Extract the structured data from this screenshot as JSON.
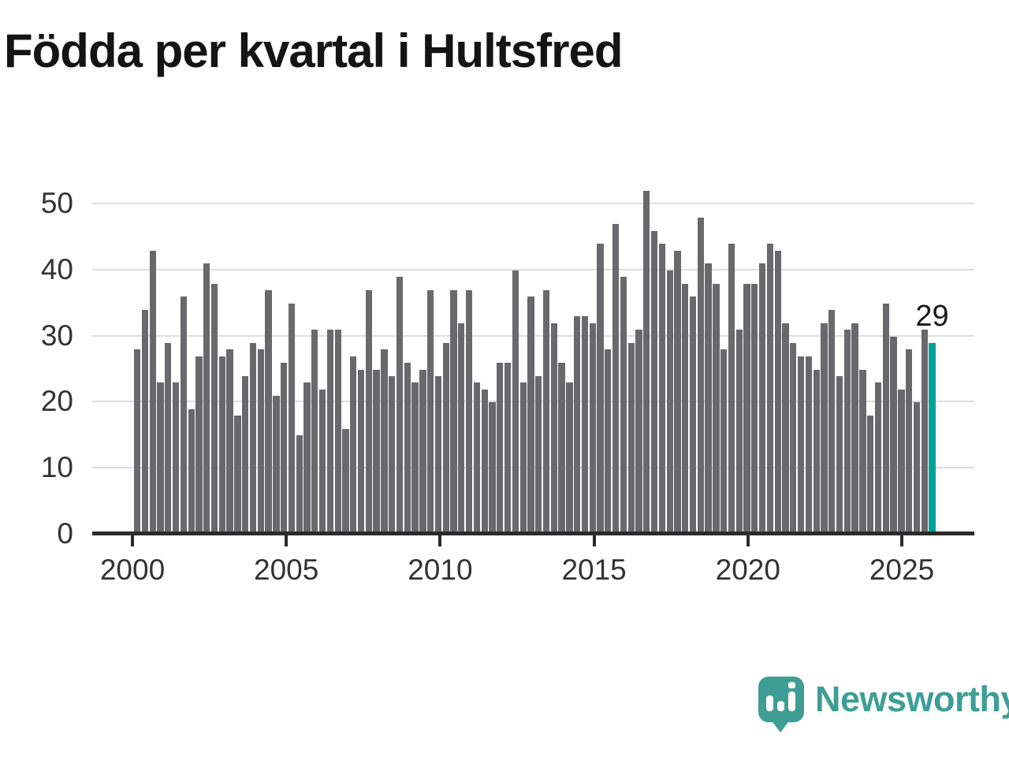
{
  "title": "Födda per kvartal i Hultsfred",
  "colors": {
    "bar": "#68686d",
    "highlight": "#00a198",
    "grid": "#dedede",
    "axis": "#2b2b2b",
    "axis_label": "#333333",
    "annotation": "#1a1a1a",
    "logo": "#3e9e96",
    "title": "#141414",
    "background": "#ffffff"
  },
  "logo": {
    "text": "Newsworthy",
    "icon": "bar-chart-speech-bubble-icon"
  },
  "chart_data": {
    "type": "bar",
    "title": "Födda per kvartal i Hultsfred",
    "xlabel": "",
    "ylabel": "",
    "grid": "horizontal",
    "legend": "none",
    "ylim": [
      0,
      52
    ],
    "y_ticks": [
      0,
      10,
      20,
      30,
      40,
      50
    ],
    "x_tick_labels": [
      "2000",
      "2005",
      "2010",
      "2015",
      "2020",
      "2025"
    ],
    "highlight_index": 103,
    "highlight_label": "29",
    "categories": [
      "2000 Q1",
      "2000 Q2",
      "2000 Q3",
      "2000 Q4",
      "2001 Q1",
      "2001 Q2",
      "2001 Q3",
      "2001 Q4",
      "2002 Q1",
      "2002 Q2",
      "2002 Q3",
      "2002 Q4",
      "2003 Q1",
      "2003 Q2",
      "2003 Q3",
      "2003 Q4",
      "2004 Q1",
      "2004 Q2",
      "2004 Q3",
      "2004 Q4",
      "2005 Q1",
      "2005 Q2",
      "2005 Q3",
      "2005 Q4",
      "2006 Q1",
      "2006 Q2",
      "2006 Q3",
      "2006 Q4",
      "2007 Q1",
      "2007 Q2",
      "2007 Q3",
      "2007 Q4",
      "2008 Q1",
      "2008 Q2",
      "2008 Q3",
      "2008 Q4",
      "2009 Q1",
      "2009 Q2",
      "2009 Q3",
      "2009 Q4",
      "2010 Q1",
      "2010 Q2",
      "2010 Q3",
      "2010 Q4",
      "2011 Q1",
      "2011 Q2",
      "2011 Q3",
      "2011 Q4",
      "2012 Q1",
      "2012 Q2",
      "2012 Q3",
      "2012 Q4",
      "2013 Q1",
      "2013 Q2",
      "2013 Q3",
      "2013 Q4",
      "2014 Q1",
      "2014 Q2",
      "2014 Q3",
      "2014 Q4",
      "2015 Q1",
      "2015 Q2",
      "2015 Q3",
      "2015 Q4",
      "2016 Q1",
      "2016 Q2",
      "2016 Q3",
      "2016 Q4",
      "2017 Q1",
      "2017 Q2",
      "2017 Q3",
      "2017 Q4",
      "2018 Q1",
      "2018 Q2",
      "2018 Q3",
      "2018 Q4",
      "2019 Q1",
      "2019 Q2",
      "2019 Q3",
      "2019 Q4",
      "2020 Q1",
      "2020 Q2",
      "2020 Q3",
      "2020 Q4",
      "2021 Q1",
      "2021 Q2",
      "2021 Q3",
      "2021 Q4",
      "2022 Q1",
      "2022 Q2",
      "2022 Q3",
      "2022 Q4",
      "2023 Q1",
      "2023 Q2",
      "2023 Q3",
      "2023 Q4",
      "2024 Q1",
      "2024 Q2",
      "2024 Q3",
      "2024 Q4",
      "2025 Q1",
      "2025 Q2",
      "2025 Q3",
      "2025 Q4"
    ],
    "values": [
      28,
      34,
      43,
      23,
      29,
      23,
      36,
      19,
      27,
      41,
      38,
      27,
      28,
      18,
      24,
      29,
      28,
      37,
      21,
      26,
      35,
      15,
      23,
      31,
      22,
      31,
      31,
      16,
      27,
      25,
      37,
      25,
      28,
      24,
      39,
      26,
      23,
      25,
      37,
      24,
      29,
      37,
      32,
      37,
      23,
      22,
      20,
      26,
      26,
      40,
      23,
      36,
      24,
      37,
      32,
      26,
      23,
      33,
      33,
      32,
      44,
      28,
      47,
      39,
      29,
      31,
      52,
      46,
      44,
      40,
      43,
      38,
      36,
      48,
      41,
      38,
      28,
      44,
      31,
      38,
      38,
      41,
      44,
      43,
      32,
      29,
      27,
      27,
      25,
      32,
      34,
      24,
      31,
      32,
      25,
      18,
      23,
      35,
      30,
      22,
      28,
      20,
      31,
      29
    ]
  }
}
